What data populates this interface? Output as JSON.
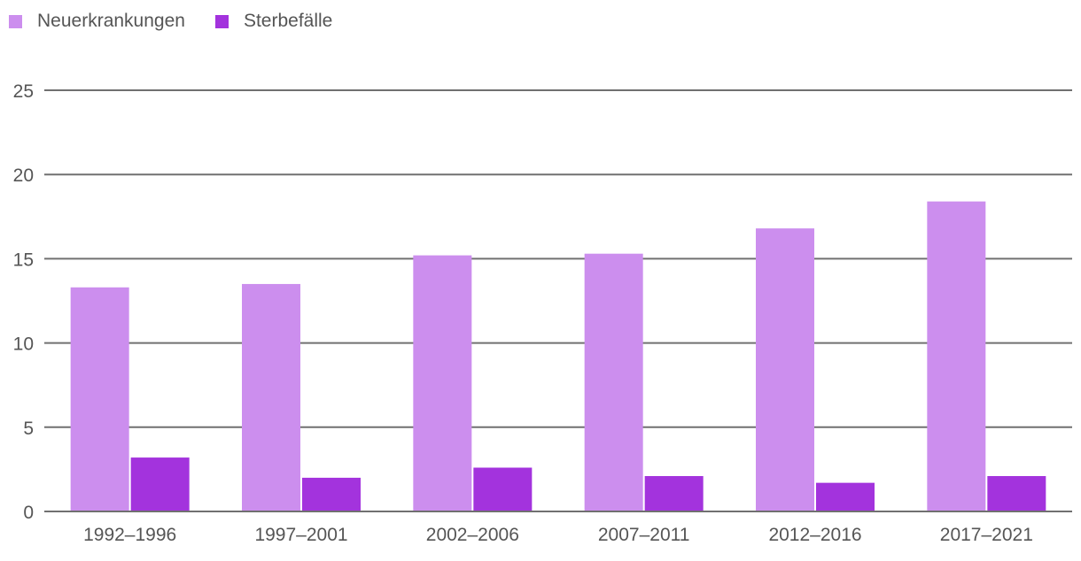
{
  "colors": {
    "neuerkrankungen": "#cc8eee",
    "sterbefaelle": "#a333dd",
    "grid": "#707070",
    "axis_text": "#555555"
  },
  "legend": [
    {
      "label": "Neuerkrankungen"
    },
    {
      "label": "Sterbefälle"
    }
  ],
  "chart_data": {
    "type": "bar",
    "categories": [
      "1992–1996",
      "1997–2001",
      "2002–2006",
      "2007–2011",
      "2012–2016",
      "2017–2021"
    ],
    "series": [
      {
        "name": "Neuerkrankungen",
        "values": [
          13.3,
          13.5,
          15.2,
          15.3,
          16.8,
          18.4
        ]
      },
      {
        "name": "Sterbefälle",
        "values": [
          3.2,
          2.0,
          2.6,
          2.1,
          1.7,
          2.1
        ]
      }
    ],
    "title": "",
    "xlabel": "",
    "ylabel": "",
    "ylim": [
      0,
      25
    ],
    "yticks": [
      "0",
      "5",
      "10",
      "15",
      "20",
      "25"
    ],
    "grid": true,
    "legend_position": "top-left"
  }
}
